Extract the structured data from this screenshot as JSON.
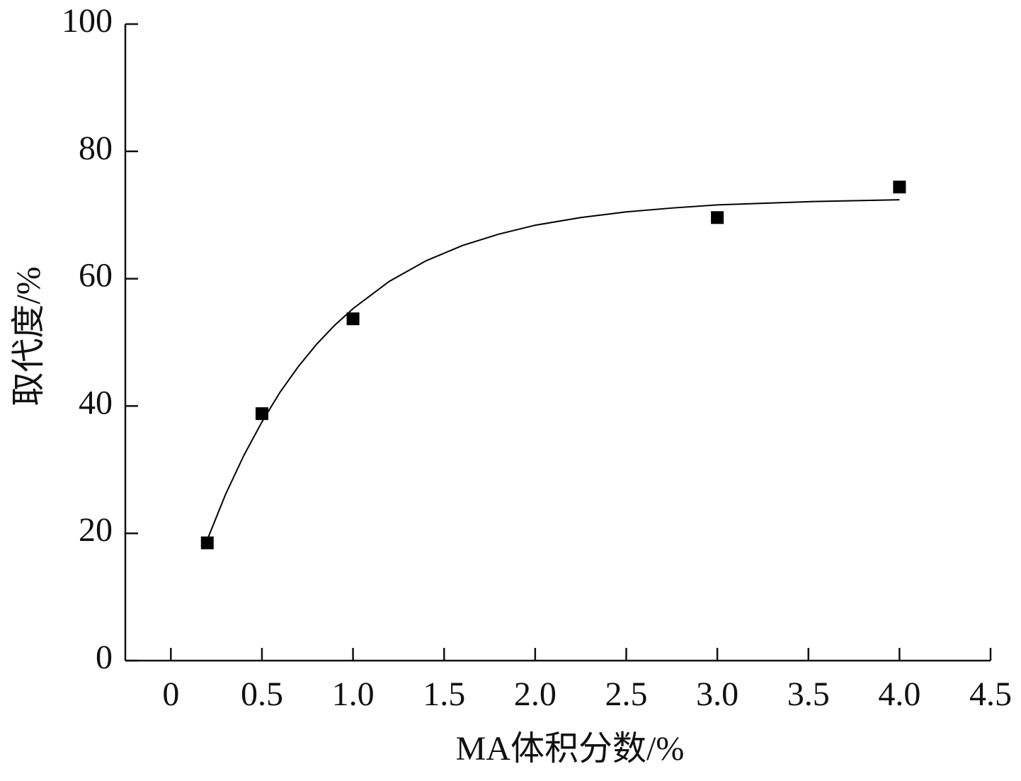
{
  "chart_data": {
    "type": "scatter",
    "x_label": "MA体积分数/%",
    "y_label": "取代度/%",
    "x": [
      0.2,
      0.5,
      1.0,
      3.0,
      4.0
    ],
    "values": [
      18.5,
      38.8,
      53.7,
      69.6,
      74.4
    ],
    "color": "#000000",
    "fit": {
      "x": [
        0.2,
        0.3,
        0.4,
        0.5,
        0.6,
        0.7,
        0.8,
        0.9,
        1.0,
        1.2,
        1.4,
        1.6,
        1.8,
        2.0,
        2.25,
        2.5,
        2.75,
        3.0,
        3.5,
        4.0
      ],
      "values": [
        19.0,
        26.1,
        32.2,
        37.5,
        42.2,
        46.2,
        49.7,
        52.7,
        55.3,
        59.6,
        62.8,
        65.2,
        67.0,
        68.4,
        69.6,
        70.5,
        71.1,
        71.6,
        72.1,
        72.4
      ]
    },
    "xlim": [
      -0.25,
      4.5
    ],
    "ylim": [
      0,
      100
    ],
    "xticks": [
      0,
      0.5,
      {
        "value": 1,
        "label": "1.0"
      },
      1.5,
      {
        "value": 2,
        "label": "2.0"
      },
      2.5,
      {
        "value": 3,
        "label": "3.0"
      },
      3.5,
      {
        "value": 4,
        "label": "4.0"
      },
      4.5
    ],
    "yticks": [
      0,
      20,
      40,
      60,
      80,
      100
    ]
  }
}
